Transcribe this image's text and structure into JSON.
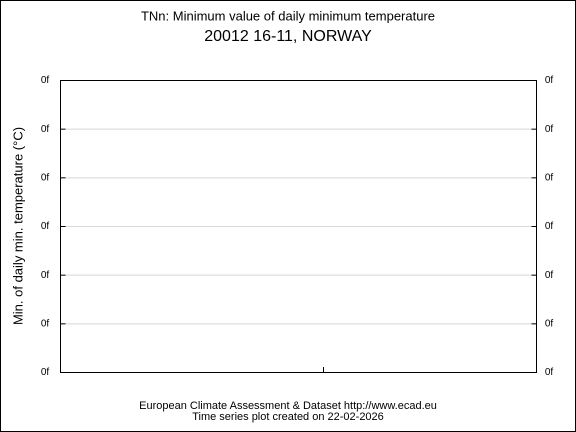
{
  "chart_data": {
    "type": "line",
    "title": "TNn: Minimum value of daily minimum temperature",
    "subtitle": "20012 16-11, NORWAY",
    "y_label": "Min. of daily min. temperature (°C)",
    "footer": [
      "European Climate Assessment & Dataset  http://www.ecad.eu",
      "Time series plot created on 22-02-2026"
    ],
    "series": [],
    "ylim": [
      0,
      6
    ],
    "yticks": [
      {
        "value": 0,
        "label": "0f"
      },
      {
        "value": 1,
        "label": "0f"
      },
      {
        "value": 2,
        "label": "0f"
      },
      {
        "value": 3,
        "label": "0f"
      },
      {
        "value": 4,
        "label": "0f"
      },
      {
        "value": 5,
        "label": "0f"
      },
      {
        "value": 6,
        "label": "0f"
      }
    ],
    "grid": true,
    "right_axis_labels": true
  }
}
